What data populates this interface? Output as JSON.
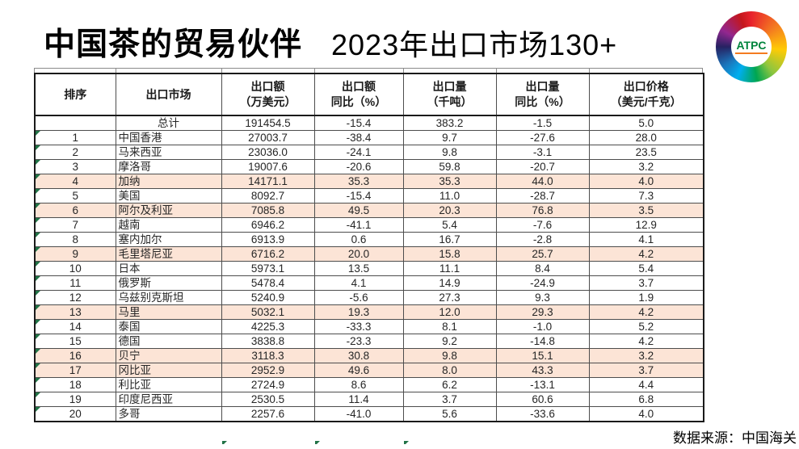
{
  "page": {
    "title_main": "中国茶的贸易伙伴",
    "title_sub": "2023年出口市场130+",
    "source_note": "数据来源：中国海关"
  },
  "logo": {
    "text": "ATPC"
  },
  "colors": {
    "highlight_row": "#FCE4D6",
    "flag_green": "#217346",
    "logo_text_green": "#00843D",
    "table_border": "#1A1A1A"
  },
  "table": {
    "headers": [
      {
        "line1": "排序",
        "line2": ""
      },
      {
        "line1": "出口市场",
        "line2": ""
      },
      {
        "line1": "出口额",
        "line2": "（万美元）"
      },
      {
        "line1": "出口额",
        "line2": "同比（%）"
      },
      {
        "line1": "出口量",
        "line2": "（千吨）"
      },
      {
        "line1": "出口量",
        "line2": "同比（%）"
      },
      {
        "line1": "出口价格",
        "line2": "（美元/千克）"
      }
    ]
  },
  "chart_data": {
    "type": "table",
    "title": "中国茶的贸易伙伴 2023年出口市场130+",
    "columns": [
      "排序",
      "出口市场",
      "出口额（万美元）",
      "出口额同比（%）",
      "出口量（千吨）",
      "出口量同比（%）",
      "出口价格（美元/千克）"
    ],
    "rows": [
      [
        "",
        "总计",
        "191454.5",
        "-15.4",
        "383.2",
        "-1.5",
        "5.0"
      ],
      [
        "1",
        "中国香港",
        "27003.7",
        "-38.4",
        "9.7",
        "-27.6",
        "28.0"
      ],
      [
        "2",
        "马来西亚",
        "23036.0",
        "-24.1",
        "9.8",
        "-3.1",
        "23.5"
      ],
      [
        "3",
        "摩洛哥",
        "19007.6",
        "-20.6",
        "59.8",
        "-20.7",
        "3.2"
      ],
      [
        "4",
        "加纳",
        "14171.1",
        "35.3",
        "35.3",
        "44.0",
        "4.0"
      ],
      [
        "5",
        "美国",
        "8092.7",
        "-15.4",
        "11.0",
        "-28.7",
        "7.3"
      ],
      [
        "6",
        "阿尔及利亚",
        "7085.8",
        "49.5",
        "20.3",
        "76.8",
        "3.5"
      ],
      [
        "7",
        "越南",
        "6946.2",
        "-41.1",
        "5.4",
        "-7.6",
        "12.9"
      ],
      [
        "8",
        "塞内加尔",
        "6913.9",
        "0.6",
        "16.7",
        "-2.8",
        "4.1"
      ],
      [
        "9",
        "毛里塔尼亚",
        "6716.2",
        "20.0",
        "15.8",
        "25.7",
        "4.2"
      ],
      [
        "10",
        "日本",
        "5973.1",
        "13.5",
        "11.1",
        "8.4",
        "5.4"
      ],
      [
        "11",
        "俄罗斯",
        "5478.4",
        "4.1",
        "14.9",
        "-24.9",
        "3.7"
      ],
      [
        "12",
        "乌兹别克斯坦",
        "5240.9",
        "-5.6",
        "27.3",
        "9.3",
        "1.9"
      ],
      [
        "13",
        "马里",
        "5032.1",
        "19.3",
        "12.0",
        "29.3",
        "4.2"
      ],
      [
        "14",
        "泰国",
        "4225.3",
        "-33.3",
        "8.1",
        "-1.0",
        "5.2"
      ],
      [
        "15",
        "德国",
        "3838.8",
        "-23.3",
        "9.2",
        "-14.8",
        "4.2"
      ],
      [
        "16",
        "贝宁",
        "3118.3",
        "30.8",
        "9.8",
        "15.1",
        "3.2"
      ],
      [
        "17",
        "冈比亚",
        "2952.9",
        "49.6",
        "8.0",
        "43.3",
        "3.7"
      ],
      [
        "18",
        "利比亚",
        "2724.9",
        "8.6",
        "6.2",
        "-13.1",
        "4.4"
      ],
      [
        "19",
        "印度尼西亚",
        "2530.5",
        "11.4",
        "3.7",
        "60.6",
        "6.8"
      ],
      [
        "20",
        "多哥",
        "2257.6",
        "-41.0",
        "5.6",
        "-33.6",
        "4.0"
      ]
    ],
    "highlighted_rank_rows": [
      "4",
      "6",
      "9",
      "13",
      "16",
      "17"
    ],
    "legend_position": "none",
    "source": "数据来源：中国海关"
  }
}
